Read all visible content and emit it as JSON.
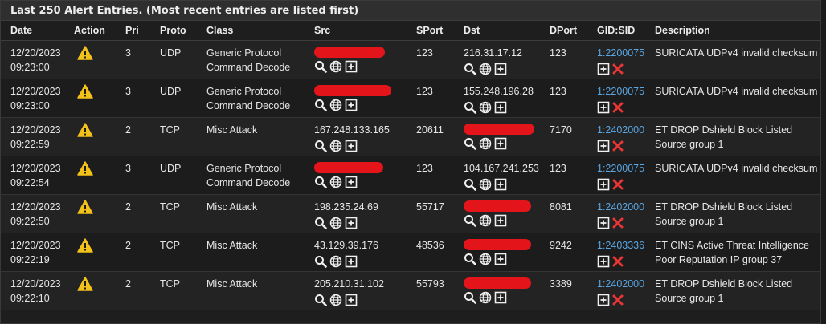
{
  "panel": {
    "title": "Last 250 Alert Entries. (Most recent entries are listed first)"
  },
  "columns": [
    "Date",
    "Action",
    "Pri",
    "Proto",
    "Class",
    "Src",
    "SPort",
    "Dst",
    "DPort",
    "GID:SID",
    "Description"
  ],
  "icons": {
    "action": "warning-icon",
    "lookup": "search-icon",
    "geo": "globe-icon",
    "add": "plus-box-icon",
    "remove": "red-x-icon"
  },
  "colors": {
    "link": "#5aa5e0",
    "warning": "#f2c21b",
    "redaction": "#e4141b",
    "remove": "#e83535"
  },
  "rows": [
    {
      "date": "12/20/2023",
      "time": "09:23:00",
      "pri": "3",
      "proto": "UDP",
      "class1": "Generic Protocol",
      "class2": "Command Decode",
      "src": "",
      "sport": "123",
      "dst": "216.31.17.12",
      "dport": "123",
      "gidsid": "1:2200075",
      "desc1": "SURICATA UDPv4 invalid checksum",
      "desc2": ""
    },
    {
      "date": "12/20/2023",
      "time": "09:23:00",
      "pri": "3",
      "proto": "UDP",
      "class1": "Generic Protocol",
      "class2": "Command Decode",
      "src": "",
      "sport": "123",
      "dst": "155.248.196.28",
      "dport": "123",
      "gidsid": "1:2200075",
      "desc1": "SURICATA UDPv4 invalid checksum",
      "desc2": ""
    },
    {
      "date": "12/20/2023",
      "time": "09:22:59",
      "pri": "2",
      "proto": "TCP",
      "class1": "Misc Attack",
      "class2": "",
      "src": "167.248.133.165",
      "sport": "20611",
      "dst": "",
      "dport": "7170",
      "gidsid": "1:2402000",
      "desc1": "ET DROP Dshield Block Listed",
      "desc2": "Source group 1"
    },
    {
      "date": "12/20/2023",
      "time": "09:22:54",
      "pri": "3",
      "proto": "UDP",
      "class1": "Generic Protocol",
      "class2": "Command Decode",
      "src": "",
      "sport": "123",
      "dst": "104.167.241.253",
      "dport": "123",
      "gidsid": "1:2200075",
      "desc1": "SURICATA UDPv4 invalid checksum",
      "desc2": ""
    },
    {
      "date": "12/20/2023",
      "time": "09:22:50",
      "pri": "2",
      "proto": "TCP",
      "class1": "Misc Attack",
      "class2": "",
      "src": "198.235.24.69",
      "sport": "55717",
      "dst": "",
      "dport": "8081",
      "gidsid": "1:2402000",
      "desc1": "ET DROP Dshield Block Listed",
      "desc2": "Source group 1"
    },
    {
      "date": "12/20/2023",
      "time": "09:22:19",
      "pri": "2",
      "proto": "TCP",
      "class1": "Misc Attack",
      "class2": "",
      "src": "43.129.39.176",
      "sport": "48536",
      "dst": "",
      "dport": "9242",
      "gidsid": "1:2403336",
      "desc1": "ET CINS Active Threat Intelligence",
      "desc2": "Poor Reputation IP group 37"
    },
    {
      "date": "12/20/2023",
      "time": "09:22:10",
      "pri": "2",
      "proto": "TCP",
      "class1": "Misc Attack",
      "class2": "",
      "src": "205.210.31.102",
      "sport": "55793",
      "dst": "",
      "dport": "3389",
      "gidsid": "1:2402000",
      "desc1": "ET DROP Dshield Block Listed",
      "desc2": "Source group 1"
    }
  ]
}
